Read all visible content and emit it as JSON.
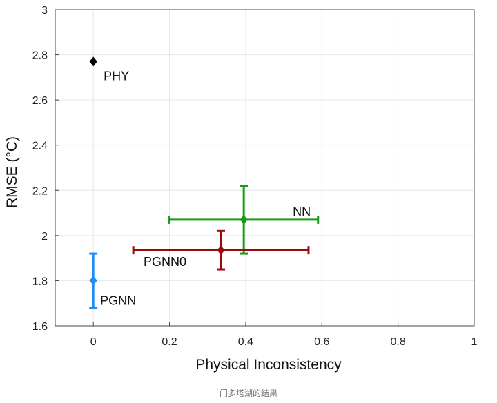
{
  "chart_data": {
    "type": "scatter",
    "title": "",
    "xlabel": "Physical Inconsistency",
    "ylabel": "RMSE (°C)",
    "xlim": [
      -0.1,
      1
    ],
    "ylim": [
      1.6,
      3
    ],
    "xticks": [
      0,
      0.2,
      0.4,
      0.6,
      0.8,
      1
    ],
    "xtick_labels": [
      "0",
      "0.2",
      "0.4",
      "0.6",
      "0.8",
      "1"
    ],
    "yticks": [
      1.6,
      1.8,
      2,
      2.2,
      2.4,
      2.6,
      2.8,
      3
    ],
    "ytick_labels": [
      "1.6",
      "1.8",
      "2",
      "2.2",
      "2.4",
      "2.6",
      "2.8",
      "3"
    ],
    "grid": true,
    "series": [
      {
        "name": "PHY",
        "x": 0,
        "y": 2.77,
        "x_err": null,
        "y_err": null,
        "color": "#000000"
      },
      {
        "name": "NN",
        "x": 0.395,
        "y": 2.07,
        "x_err": [
          0.2,
          0.59
        ],
        "y_err": [
          1.92,
          2.22
        ],
        "color": "#1a9a1a"
      },
      {
        "name": "PGNN0",
        "x": 0.335,
        "y": 1.935,
        "x_err": [
          0.105,
          0.565
        ],
        "y_err": [
          1.85,
          2.02
        ],
        "color": "#9b0a0a"
      },
      {
        "name": "PGNN",
        "x": 0,
        "y": 1.8,
        "x_err": null,
        "y_err": [
          1.68,
          1.92
        ],
        "color": "#1f8ef1"
      }
    ]
  },
  "caption": "门多塔湖的结果"
}
